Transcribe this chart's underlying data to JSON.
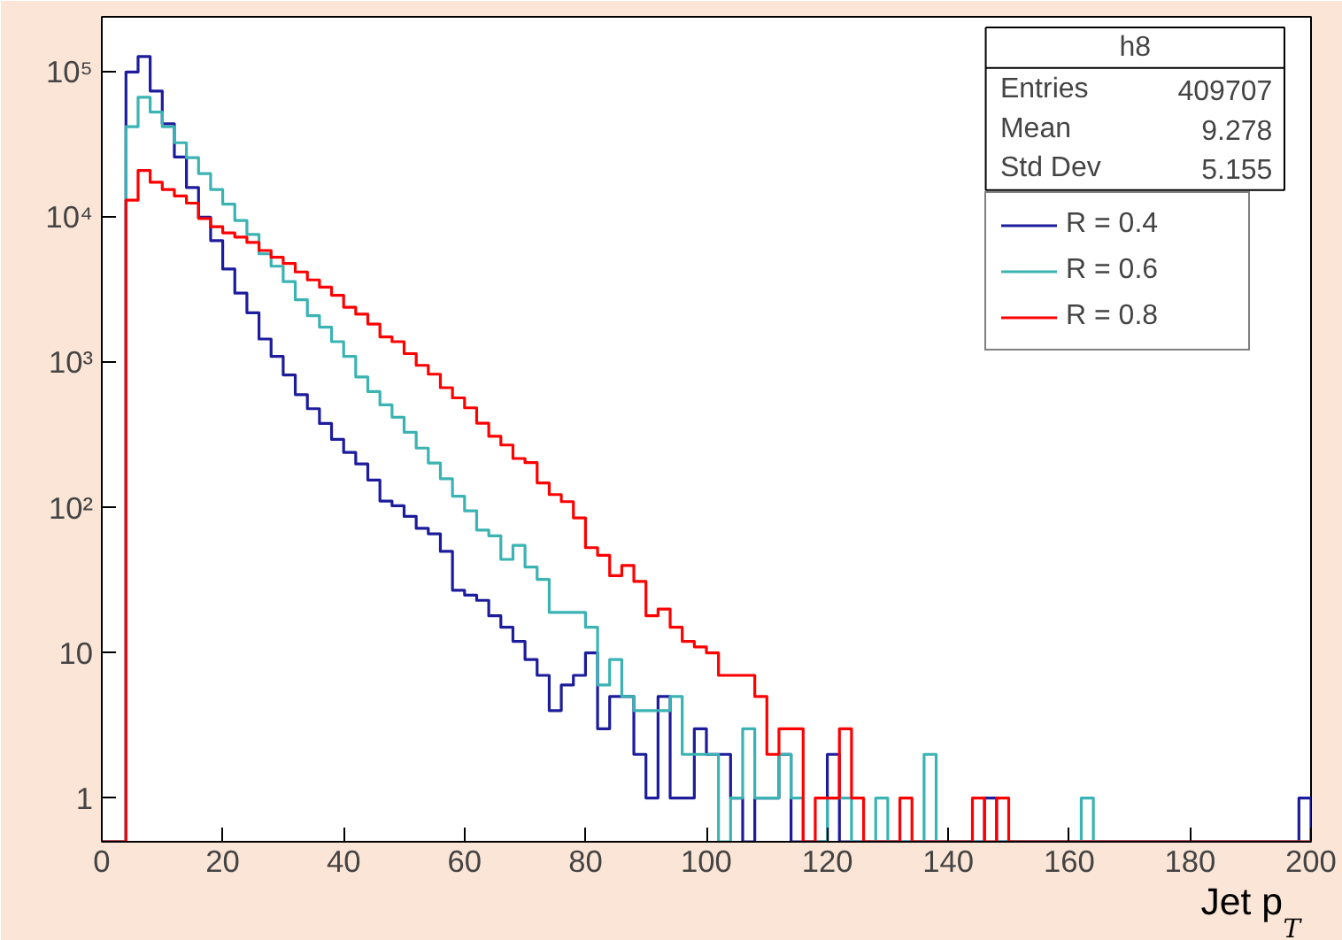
{
  "chart_data": {
    "type": "histogram",
    "title": "h8",
    "xlabel": "Jet p$_{T}$",
    "annotations": [
      "Entries",
      "409707",
      "Mean",
      "9.278",
      "Std Dev",
      "5.155"
    ],
    "bins": [
      0,
      2,
      4,
      6,
      8,
      10,
      12,
      14,
      16,
      18,
      20,
      22,
      24,
      26,
      28,
      30,
      32,
      34,
      36,
      38,
      40,
      42,
      44,
      46,
      48,
      50,
      52,
      54,
      56,
      58,
      60,
      62,
      64,
      66,
      68,
      70,
      72,
      74,
      76,
      78,
      80,
      82,
      84,
      86,
      88,
      90,
      92,
      94,
      96,
      98,
      100,
      102,
      104,
      106,
      108,
      110,
      112,
      114,
      116,
      118,
      120,
      122,
      124,
      126,
      128,
      130,
      132,
      134,
      136,
      138,
      140,
      142,
      144,
      146,
      148,
      150,
      152,
      154,
      156,
      158,
      160,
      162,
      164,
      166,
      168,
      170,
      172,
      174,
      176,
      178,
      180,
      182,
      184,
      186,
      188,
      190,
      192,
      194,
      196,
      198,
      200
    ],
    "series": [
      {
        "name": "R = 0.4",
        "color": "#1c1c9c",
        "values": [
          null,
          null,
          100000,
          128000,
          74000,
          44000,
          26000,
          16000,
          10000,
          6900,
          4400,
          3000,
          2200,
          1450,
          1100,
          820,
          600,
          480,
          380,
          295,
          240,
          200,
          155,
          111,
          103,
          87,
          72,
          66,
          50,
          27,
          25,
          23,
          18,
          15,
          12,
          9,
          7,
          4,
          6,
          7,
          10,
          3,
          5,
          5,
          2,
          1,
          5,
          1,
          1,
          3,
          2,
          2,
          1,
          null,
          1,
          1,
          2,
          null,
          null,
          null,
          2,
          null,
          null,
          null,
          null,
          null,
          null,
          null,
          null,
          null,
          null,
          null,
          null,
          1,
          null,
          null,
          null,
          null,
          null,
          null,
          null,
          null,
          null,
          null,
          null,
          null,
          null,
          null,
          null,
          null,
          null,
          null,
          null,
          null,
          null,
          null,
          null,
          null,
          null,
          1
        ]
      },
      {
        "name": "R = 0.6",
        "color": "#3bb3b3",
        "values": [
          null,
          null,
          42000,
          67000,
          53000,
          42000,
          32600,
          25700,
          20000,
          15500,
          12300,
          9500,
          7600,
          5600,
          4600,
          3600,
          2700,
          2100,
          1750,
          1390,
          1100,
          795,
          630,
          510,
          420,
          330,
          257,
          203,
          158,
          120,
          95,
          70,
          64,
          44,
          55,
          39,
          32,
          19,
          19,
          19,
          15,
          6,
          9,
          5,
          4,
          4,
          4,
          5,
          2,
          2,
          2,
          null,
          1,
          3,
          1,
          1,
          2,
          1,
          null,
          null,
          1,
          1,
          null,
          null,
          1,
          null,
          null,
          null,
          2,
          null,
          null,
          null,
          null,
          null,
          null,
          null,
          null,
          null,
          null,
          null,
          null,
          1,
          null,
          null,
          null,
          null,
          null,
          null,
          null,
          null,
          null,
          null,
          null,
          null,
          null,
          null,
          null,
          null,
          null,
          null
        ]
      },
      {
        "name": "R = 0.8",
        "color": "#ff0000",
        "values": [
          null,
          null,
          13100,
          21000,
          17400,
          15500,
          14000,
          12500,
          9800,
          8600,
          7800,
          7300,
          6700,
          5900,
          5300,
          4800,
          4200,
          3700,
          3300,
          2900,
          2400,
          2150,
          1840,
          1500,
          1390,
          1150,
          955,
          830,
          670,
          570,
          487,
          382,
          310,
          270,
          218,
          204,
          148,
          123,
          110,
          85,
          53,
          47,
          34,
          40,
          31,
          18,
          20,
          15,
          12,
          11,
          10,
          7,
          7,
          7,
          5,
          2,
          3,
          3,
          null,
          1,
          1,
          3,
          1,
          null,
          null,
          null,
          1,
          null,
          null,
          null,
          null,
          null,
          1,
          null,
          1,
          null,
          null,
          null,
          null,
          null,
          null,
          null,
          null,
          null,
          null,
          null,
          null,
          null,
          null,
          null,
          null,
          null,
          null,
          null,
          null,
          null,
          null,
          null,
          null,
          null
        ]
      }
    ],
    "log": "y",
    "xlim": [
      0,
      200
    ],
    "ylim": [
      0.5,
      240000
    ],
    "xticks": [
      0,
      20,
      40,
      60,
      80,
      100,
      120,
      140,
      160,
      180,
      200
    ],
    "yticks": [
      1,
      10,
      {
        "value": 100,
        "label": "10²"
      },
      {
        "value": 1000,
        "label": "10³"
      },
      {
        "value": 10000,
        "label": "10⁴"
      },
      {
        "value": 100000,
        "label": "10⁵"
      }
    ],
    "grid": false,
    "legend": "top right"
  }
}
